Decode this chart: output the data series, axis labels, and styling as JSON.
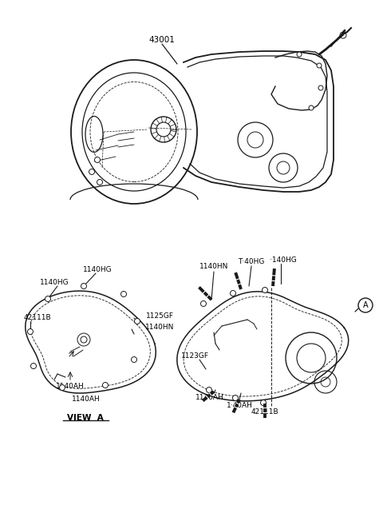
{
  "background_color": "#ffffff",
  "line_color": "#1a1a1a",
  "fig_width": 4.8,
  "fig_height": 6.57,
  "dpi": 100,
  "labels": {
    "main_part": "43001",
    "left_42111B": "42111B",
    "left_1140HG_1": "1140HG",
    "left_1140HG_2": "1140HG",
    "left_1125GF": "1125GF",
    "left_1140HN": "1140HN",
    "left_1140AH_1": "1140AH",
    "left_1140AH_2": "1140AH",
    "view_a": "VIEW  A",
    "right_1140HN": "1140HN",
    "right_T40HG": "T·40HG",
    "right_1140HG": "·140HG",
    "right_1123GF": "1123GF",
    "right_1140AH_1": "1140AH",
    "right_1140AH_2": "1·40AH",
    "right_42111B": "42111B",
    "circle_A": "A"
  }
}
